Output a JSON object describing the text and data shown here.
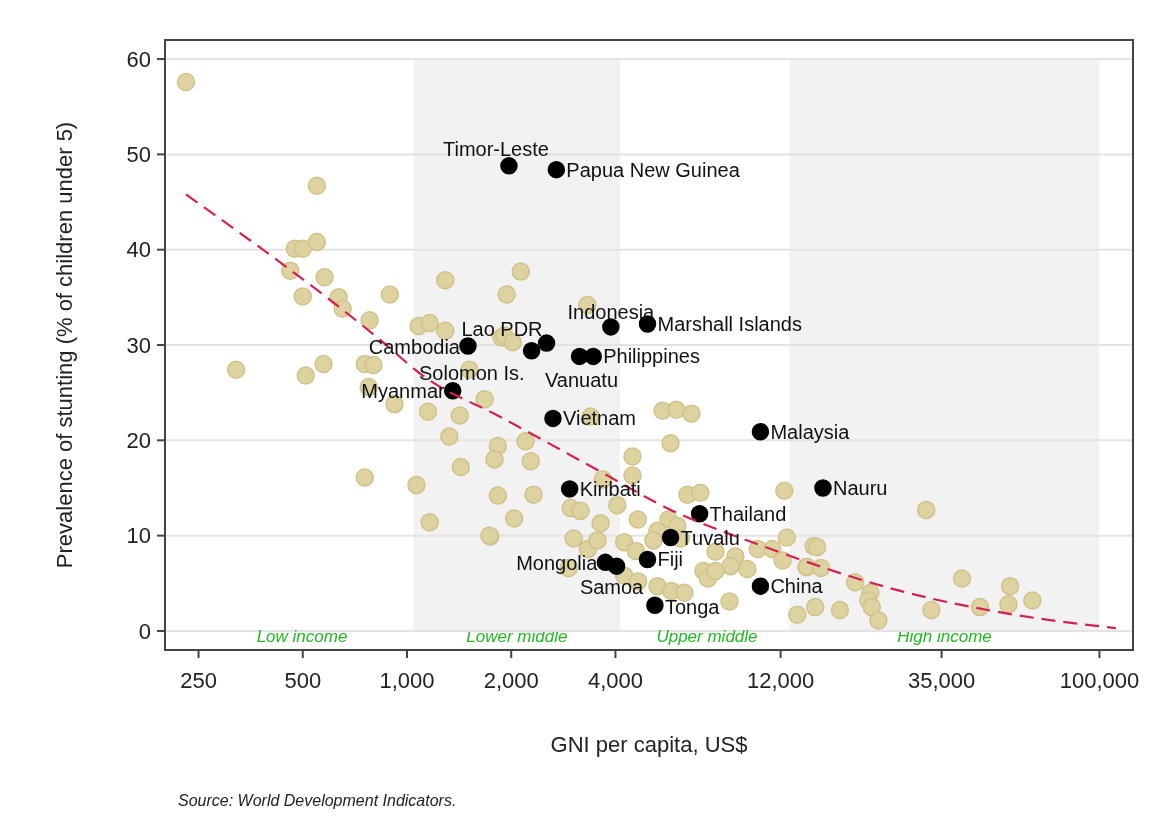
{
  "chart_data": {
    "type": "scatter",
    "xlabel": "GNI per capita, US$",
    "ylabel": "Prevalence of stunting (% of children under 5)",
    "log": "x",
    "xlim": [
      200,
      125000
    ],
    "xticks": [
      250,
      500,
      {
        "value": 1000,
        "label": "1,000"
      },
      {
        "value": 2000,
        "label": "2,000"
      },
      {
        "value": 4000,
        "label": "4,000"
      },
      {
        "value": 12000,
        "label": "12,000"
      },
      {
        "value": 35000,
        "label": "35,000"
      },
      {
        "value": 100000,
        "label": "100,000"
      }
    ],
    "ylim": [
      -2,
      62
    ],
    "yticks": [
      0,
      10,
      20,
      30,
      40,
      50,
      60
    ],
    "grid": "y",
    "bands": [
      {
        "axis": "x",
        "from": 1045,
        "to": 4125,
        "label": "Lower middle",
        "color": "#f2f2f2"
      },
      {
        "axis": "x",
        "from": 12736,
        "to": 100000,
        "label": "High income",
        "color": "#f2f2f2"
      }
    ],
    "series": [
      {
        "marker": "circle",
        "color": "#ded3a0",
        "x": [
          230,
          549,
          474,
          500,
          549,
          460,
          578,
          500,
          635,
          652,
          780,
          892,
          1290,
          1080,
          1163,
          1290,
          1875,
          2131,
          1940,
          3320,
          1910,
          2020,
          321,
          510,
          574,
          755,
          800,
          775,
          920,
          1150,
          1420,
          1515,
          1675,
          1325,
          1830,
          1790,
          1430,
          755,
          1065,
          1830,
          1163,
          1740,
          2200,
          2277,
          3390,
          5470,
          6000,
          6630,
          5770,
          4480,
          4480,
          2320,
          4050,
          2970,
          3170,
          3680,
          4640,
          2040,
          3625,
          5690,
          6040,
          6460,
          7040,
          12300,
          1730,
          3030,
          3330,
          3550,
          4240,
          4580,
          5290,
          5150,
          6170,
          7780,
          8880,
          8600,
          9620,
          7180,
          7400,
          7780,
          10300,
          11360,
          12500,
          12150,
          14240,
          14950,
          2930,
          4240,
          4650,
          5290,
          5810,
          6330,
          8540,
          13400,
          15100,
          31600,
          15300,
          14300,
          15700,
          19700,
          21800,
          21500,
          22000,
          23000,
          17800,
          32700,
          40100,
          45200,
          54600,
          55200,
          64000
        ],
        "values": [
          57.6,
          46.7,
          40.1,
          40.1,
          40.8,
          37.8,
          37.1,
          35.1,
          35.0,
          33.8,
          32.6,
          35.3,
          36.8,
          32.0,
          32.3,
          31.5,
          30.8,
          37.7,
          35.3,
          34.2,
          31.0,
          30.3,
          27.4,
          26.8,
          28.0,
          28.0,
          27.9,
          25.6,
          23.8,
          23.0,
          22.6,
          27.4,
          24.3,
          20.4,
          19.4,
          18.0,
          17.2,
          16.1,
          15.3,
          14.2,
          11.4,
          9.9,
          19.9,
          17.8,
          22.5,
          23.1,
          23.2,
          22.8,
          19.7,
          18.3,
          16.3,
          14.3,
          13.2,
          12.9,
          12.6,
          15.9,
          11.7,
          11.8,
          11.3,
          11.7,
          11.0,
          14.3,
          14.5,
          14.7,
          10.0,
          9.7,
          8.6,
          9.5,
          9.3,
          8.4,
          10.5,
          9.5,
          9.7,
          8.3,
          7.8,
          6.8,
          6.5,
          6.3,
          5.5,
          6.3,
          8.6,
          8.6,
          9.8,
          7.4,
          6.7,
          8.9,
          6.6,
          5.8,
          5.2,
          4.7,
          4.2,
          4.0,
          3.1,
          1.7,
          2.5,
          12.7,
          8.8,
          6.7,
          6.6,
          5.1,
          4.0,
          3.2,
          2.5,
          1.1,
          2.2,
          2.2,
          5.5,
          2.5,
          2.8,
          4.7,
          3.2
        ]
      },
      {
        "marker": "circle",
        "color": "#000000",
        "x": [
          1970,
          2700,
          3880,
          4950,
          2530,
          1500,
          2290,
          3150,
          3450,
          1355,
          2640,
          10490,
          15900,
          2950,
          7000,
          5770,
          4950,
          3740,
          4030,
          5200,
          10490
        ],
        "values": [
          48.8,
          48.4,
          31.9,
          32.2,
          30.2,
          29.9,
          29.4,
          28.8,
          28.8,
          25.2,
          22.3,
          20.9,
          15.0,
          14.9,
          12.3,
          9.8,
          7.5,
          7.2,
          6.8,
          2.7,
          4.7
        ]
      },
      {
        "type": "line",
        "color": "#d6204f",
        "line_style": "dashed",
        "x": [
          230,
          820,
          1120,
          1850,
          3625,
          5700,
          10490,
          26600,
          56800,
          111500
        ],
        "values": [
          45.8,
          30.8,
          26.7,
          22.5,
          16.7,
          12.8,
          9.0,
          4.2,
          1.7,
          0.3
        ]
      }
    ],
    "annotations": [
      {
        "text": "Timor-Leste",
        "x": 1970,
        "y": 48.8
      },
      {
        "text": "Papua New Guinea",
        "x": 2700,
        "y": 48.4
      },
      {
        "text": "Indonesia",
        "x": 3880,
        "y": 31.9
      },
      {
        "text": "Marshall Islands",
        "x": 4950,
        "y": 32.2
      },
      {
        "text": "Lao PDR",
        "x": 2530,
        "y": 30.2
      },
      {
        "text": "Cambodia",
        "x": 1500,
        "y": 29.9
      },
      {
        "text": "Solomon Is.",
        "x": 2290,
        "y": 29.4
      },
      {
        "text": "Vanuatu",
        "x": 3150,
        "y": 28.8
      },
      {
        "text": "Philippines",
        "x": 3450,
        "y": 28.8
      },
      {
        "text": "Myanmar",
        "x": 1355,
        "y": 25.2
      },
      {
        "text": "Vietnam",
        "x": 2640,
        "y": 22.3
      },
      {
        "text": "Malaysia",
        "x": 10490,
        "y": 20.9
      },
      {
        "text": "Nauru",
        "x": 15900,
        "y": 15.0
      },
      {
        "text": "Kiribati",
        "x": 2950,
        "y": 14.9
      },
      {
        "text": "Thailand",
        "x": 7000,
        "y": 12.3
      },
      {
        "text": "Tuvalu",
        "x": 5770,
        "y": 9.8
      },
      {
        "text": "Fiji",
        "x": 4950,
        "y": 7.5
      },
      {
        "text": "Mongolia",
        "x": 3740,
        "y": 7.2
      },
      {
        "text": "Samoa",
        "x": 4030,
        "y": 6.8
      },
      {
        "text": "Tonga",
        "x": 5200,
        "y": 2.7
      },
      {
        "text": "China",
        "x": 10490,
        "y": 4.7
      },
      "Low income",
      "Upper middle",
      "Source: World Development Indicators."
    ]
  }
}
